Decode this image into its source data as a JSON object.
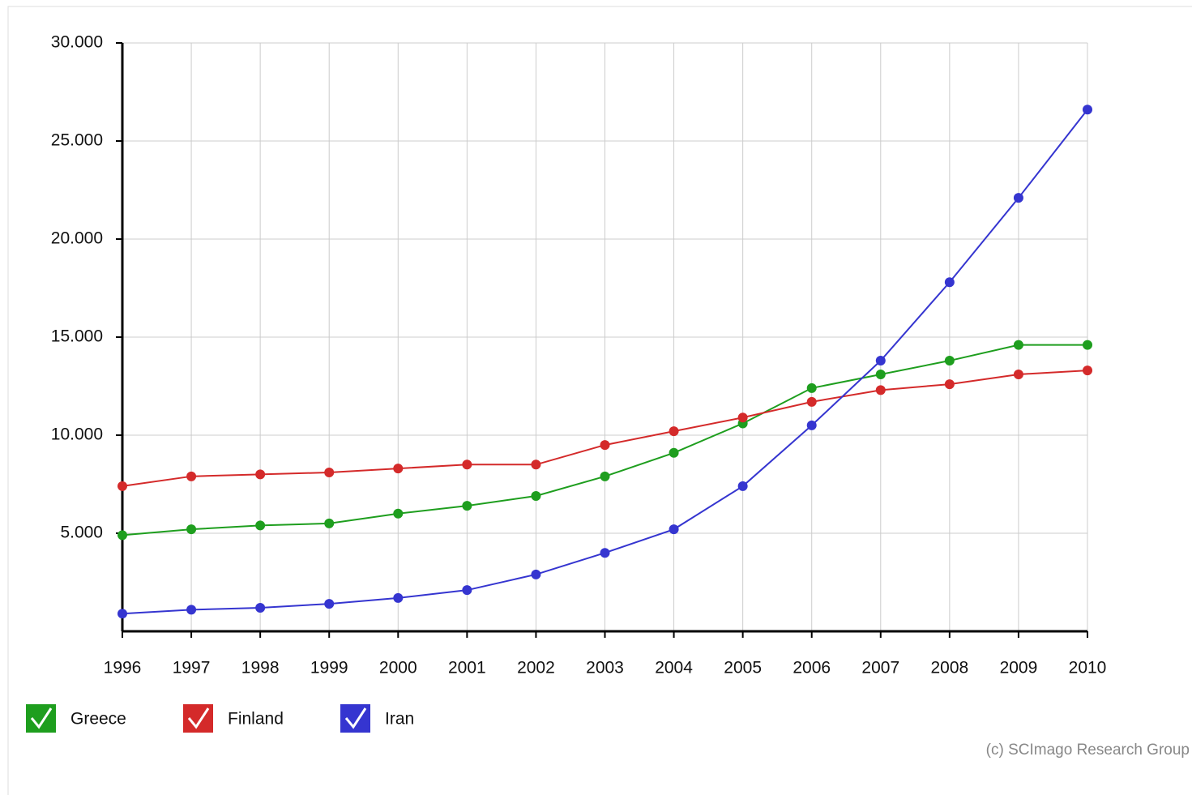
{
  "chart_data": {
    "type": "line",
    "categories": [
      "1996",
      "1997",
      "1998",
      "1999",
      "2000",
      "2001",
      "2002",
      "2003",
      "2004",
      "2005",
      "2006",
      "2007",
      "2008",
      "2009",
      "2010"
    ],
    "series": [
      {
        "name": "Greece",
        "color": "#1e9e1e",
        "values": [
          4900,
          5200,
          5400,
          5500,
          6000,
          6400,
          6900,
          7900,
          9100,
          10600,
          12400,
          13100,
          13800,
          14600,
          14600
        ]
      },
      {
        "name": "Finland",
        "color": "#d42a2a",
        "values": [
          7400,
          7900,
          8000,
          8100,
          8300,
          8500,
          8500,
          9500,
          10200,
          10900,
          11700,
          12300,
          12600,
          13100,
          13300
        ]
      },
      {
        "name": "Iran",
        "color": "#3535d0",
        "values": [
          900,
          1100,
          1200,
          1400,
          1700,
          2100,
          2900,
          4000,
          5200,
          7400,
          10500,
          13800,
          17800,
          22100,
          26600
        ]
      }
    ],
    "ylim": [
      0,
      30000
    ],
    "yticks": [
      {
        "value": 5000,
        "label": "5.000"
      },
      {
        "value": 10000,
        "label": "10.000"
      },
      {
        "value": 15000,
        "label": "15.000"
      },
      {
        "value": 20000,
        "label": "20.000"
      },
      {
        "value": 25000,
        "label": "25.000"
      },
      {
        "value": 30000,
        "label": "30.000"
      }
    ],
    "grid": true,
    "credit": "(c) SCImago Research Group"
  }
}
